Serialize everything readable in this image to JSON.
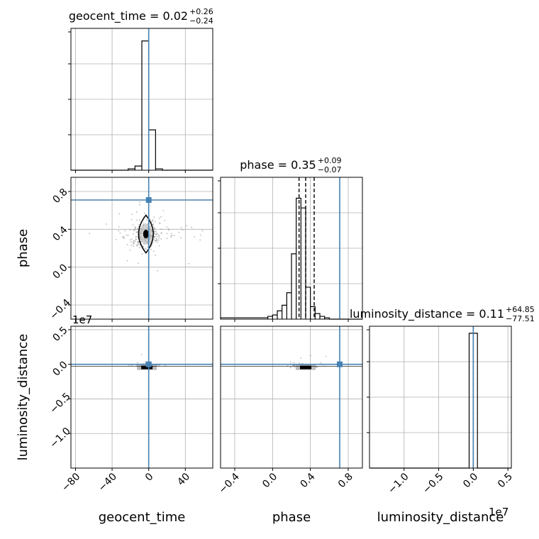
{
  "chart_data": {
    "type": "corner",
    "colors": {
      "truth": "#4682b4",
      "hist": "#000000",
      "grid": "#b0b0b0",
      "scatter": "#808080"
    },
    "parameters": [
      {
        "key": "geocent_time",
        "label": "geocent_time",
        "truth": 0.0
      },
      {
        "key": "phase",
        "label": "phase",
        "truth": 0.71
      },
      {
        "key": "luminosity_distance",
        "label": "luminosity_distance",
        "truth": 0.0,
        "offset_text": "1e7"
      }
    ],
    "titles": [
      {
        "param": "geocent_time",
        "text": "geocent_time = 0.02",
        "sup": "+0.26",
        "sub": "−0.24"
      },
      {
        "param": "phase",
        "text": "phase = 0.35",
        "sup": "+0.09",
        "sub": "−0.07"
      },
      {
        "param": "luminosity_distance",
        "text": "luminosity_distance = 0.11",
        "sup": "+64.85",
        "sub": "−77.51"
      }
    ],
    "axes": {
      "geocent_time": {
        "range": [
          -85,
          70
        ],
        "ticks": [
          -80,
          -40,
          0,
          40
        ],
        "tick_labels": [
          "−80",
          "−40",
          "0",
          "40"
        ]
      },
      "phase": {
        "range": [
          -0.55,
          0.95
        ],
        "ticks": [
          -0.4,
          0.0,
          0.4,
          0.8
        ],
        "tick_labels": [
          "−0.4",
          "0.0",
          "0.4",
          "0.8"
        ]
      },
      "luminosity_distance": {
        "range": [
          -1.5,
          0.55
        ],
        "ticks": [
          -1.0,
          -0.5,
          0.0,
          0.5
        ],
        "tick_labels": [
          "−1.0",
          "−0.5",
          "0.0",
          "0.5"
        ]
      }
    },
    "histograms": {
      "geocent_time": {
        "bins": [
          -22.5,
          -15,
          -7.5,
          0,
          7.5,
          15
        ],
        "counts": [
          0.01,
          0.03,
          0.93,
          0.29,
          0.01
        ],
        "quantiles": [
          0.02
        ],
        "ymax": 1.0
      },
      "phase": {
        "bins": [
          -0.55,
          -0.05,
          0.0,
          0.05,
          0.1,
          0.15,
          0.2,
          0.25,
          0.3,
          0.35,
          0.4,
          0.45,
          0.5,
          0.55,
          0.6,
          0.65
        ],
        "counts": [
          0.01,
          0.02,
          0.03,
          0.06,
          0.1,
          0.19,
          0.47,
          0.87,
          0.8,
          0.23,
          0.09,
          0.04,
          0.02,
          0.01,
          0.0
        ],
        "quantiles": [
          0.28,
          0.35,
          0.44
        ],
        "ymax": 1.0
      },
      "luminosity_distance": {
        "bins": [
          -0.06,
          0.0,
          0.06
        ],
        "counts": [
          0.97,
          0.97
        ],
        "quantiles": [
          0.0
        ],
        "ymax": 1.0
      }
    },
    "pairs": [
      {
        "x": "geocent_time",
        "y": "phase",
        "center": [
          -3,
          0.35
        ],
        "contour": {
          "rx": 8,
          "ry": 0.2
        }
      },
      {
        "x": "geocent_time",
        "y": "luminosity_distance",
        "center": [
          -2,
          -0.02
        ],
        "contour": null
      },
      {
        "x": "phase",
        "y": "luminosity_distance",
        "center": [
          0.35,
          -0.02
        ],
        "contour": null
      }
    ]
  }
}
